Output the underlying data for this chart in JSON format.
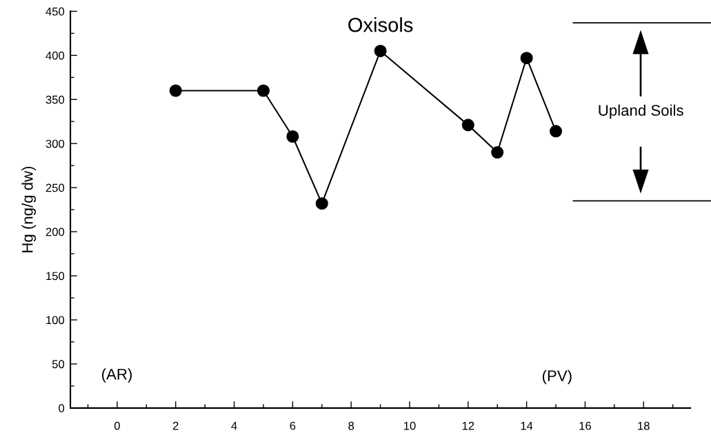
{
  "chart_data": {
    "type": "line",
    "title": "Oxisols",
    "ylabel": "Hg (ng/g dw)",
    "x": [
      2,
      5,
      6,
      7,
      9,
      12,
      13,
      14,
      15
    ],
    "series": [
      {
        "color": "#000000",
        "values": [
          360,
          360,
          308,
          232,
          405,
          321,
          290,
          397,
          314
        ]
      }
    ],
    "marker": "circle",
    "line_style": "solid",
    "grid": false,
    "xlim": [
      -1.6,
      19.6
    ],
    "xticks": [
      {
        "value": -1,
        "label": null
      },
      0,
      {
        "value": 1,
        "label": null
      },
      2,
      {
        "value": 3,
        "label": null
      },
      4,
      {
        "value": 5,
        "label": null
      },
      6,
      {
        "value": 7,
        "label": null
      },
      8,
      {
        "value": 9,
        "label": null
      },
      10,
      {
        "value": 11,
        "label": null
      },
      12,
      {
        "value": 13,
        "label": null
      },
      14,
      {
        "value": 15,
        "label": null
      },
      16,
      {
        "value": 17,
        "label": null
      },
      18,
      {
        "value": 19,
        "label": null
      }
    ],
    "ylim": [
      0,
      450
    ],
    "yticks": [
      0,
      {
        "value": 25,
        "label": null
      },
      50,
      {
        "value": 75,
        "label": null
      },
      100,
      {
        "value": 125,
        "label": null
      },
      150,
      {
        "value": 175,
        "label": null
      },
      200,
      {
        "value": 225,
        "label": null
      },
      250,
      {
        "value": 275,
        "label": null
      },
      300,
      {
        "value": 325,
        "label": null
      },
      350,
      {
        "value": 375,
        "label": null
      },
      400,
      {
        "value": 425,
        "label": null
      },
      450
    ],
    "ref_lines": [
      {
        "axis": "y",
        "value": 437,
        "color": "#000000"
      },
      {
        "axis": "y",
        "value": 235,
        "color": "#000000"
      }
    ],
    "annotations": [
      "(AR)",
      "(PV)",
      "Upland Soils"
    ]
  }
}
